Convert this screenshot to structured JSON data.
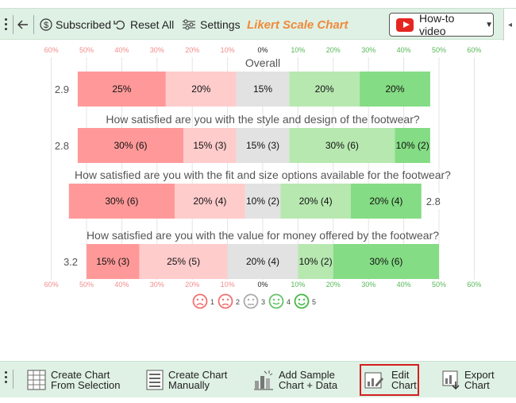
{
  "toolbar": {
    "subscribed_label": "Subscribed",
    "reset_label": "Reset All",
    "settings_label": "Settings",
    "app_title": "Likert Scale Chart",
    "howto_label": "How-to video",
    "collapse_glyph": "◂"
  },
  "bottom_toolbar": {
    "items": [
      {
        "line1": "Create Chart",
        "line2": "From Selection",
        "icon": "table-grid-icon"
      },
      {
        "line1": "Create Chart",
        "line2": "Manually",
        "icon": "form-list-icon"
      },
      {
        "line1": "Add Sample",
        "line2": "Chart + Data",
        "icon": "sample-chart-icon"
      },
      {
        "line1": "Edit",
        "line2": "Chart",
        "icon": "edit-chart-icon",
        "active": true
      },
      {
        "line1": "Export",
        "line2": "Chart",
        "icon": "export-chart-icon"
      }
    ]
  },
  "chart_data": {
    "type": "bar",
    "subtype": "diverging-stacked",
    "axis_ticks": [
      "60%",
      "50%",
      "40%",
      "30%",
      "20%",
      "10%",
      "0%",
      "10%",
      "20%",
      "30%",
      "40%",
      "50%",
      "60%"
    ],
    "neutral_split": 0.5,
    "levels": [
      "1",
      "2",
      "3",
      "4",
      "5"
    ],
    "colors": [
      "#ff9999",
      "#ffcccc",
      "#e2e2e2",
      "#b7e8b0",
      "#84dc84"
    ],
    "axis_colors": {
      "negative": "#f28c8c",
      "neutral": "#222222",
      "positive": "#57b857"
    },
    "series": [
      {
        "title": "Overall",
        "values": [
          25,
          20,
          15,
          20,
          20
        ],
        "labels": [
          "25%",
          "20%",
          "15%",
          "20%",
          "20%"
        ],
        "score": "2.9",
        "score_side": "left"
      },
      {
        "title": "How satisfied are you with the style and design of the footwear?",
        "values": [
          30,
          15,
          15,
          30,
          10
        ],
        "labels": [
          "30% (6)",
          "15% (3)",
          "15% (3)",
          "30% (6)",
          "10% (2)"
        ],
        "score": "2.8",
        "score_side": "left"
      },
      {
        "title": "How satisfied are you with the fit and size options available for the footwear?",
        "values": [
          30,
          20,
          10,
          20,
          20
        ],
        "labels": [
          "30% (6)",
          "20% (4)",
          "10% (2)",
          "20% (4)",
          "20% (4)"
        ],
        "score": "2.8",
        "score_side": "right"
      },
      {
        "title": "How satisfied are you with the value for money offered by the footwear?",
        "values": [
          15,
          25,
          20,
          10,
          30
        ],
        "labels": [
          "15% (3)",
          "25% (5)",
          "20% (4)",
          "10% (2)",
          "30% (6)"
        ],
        "score": "3.2",
        "score_side": "left"
      }
    ],
    "legend": {
      "placement": "bottom-center",
      "labels": [
        "1",
        "2",
        "3",
        "4",
        "5"
      ],
      "colors": [
        "#f07070",
        "#f07070",
        "#aaaaaa",
        "#66c266",
        "#44b844"
      ],
      "faces": [
        "very-sad",
        "sad",
        "neutral",
        "happy",
        "very-happy"
      ]
    },
    "grid": true
  }
}
